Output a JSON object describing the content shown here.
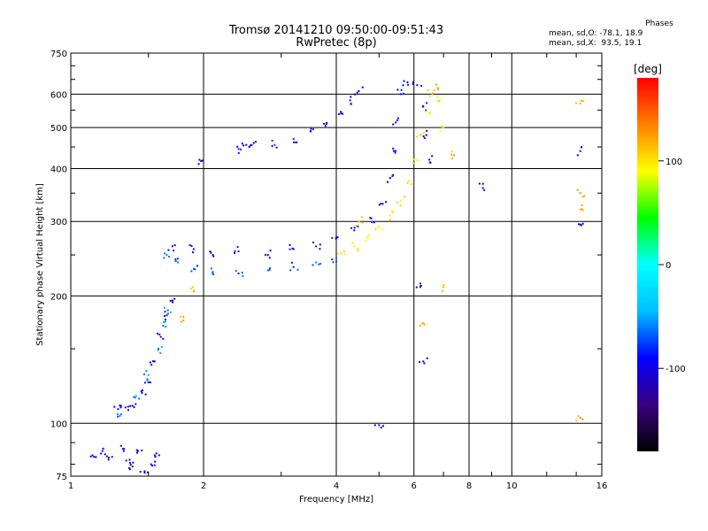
{
  "header": {
    "title": "Tromsø 20141210 09:50:00-09:51:43",
    "subtitle": "RwPretec (8p)"
  },
  "phases_box": {
    "title": "Phases",
    "line_o": "mean, sd,O: -78.1, 18.9",
    "line_x": "mean, sd,X:  93.5, 19.1"
  },
  "colorbar": {
    "unit": "[deg]",
    "ticks": [
      {
        "value": 100,
        "label": "100"
      },
      {
        "value": 0,
        "label": "0"
      },
      {
        "value": -100,
        "label": "-100"
      }
    ],
    "range": [
      -180,
      180
    ],
    "colors": [
      "#000000",
      "#3a0080",
      "#0000ff",
      "#00bfff",
      "#00ffff",
      "#00ff00",
      "#ffff00",
      "#ff8000",
      "#ff0000"
    ]
  },
  "chart_data": {
    "type": "scatter",
    "title": "Tromsø 20141210 09:50:00-09:51:43",
    "subtitle": "RwPretec (8p)",
    "xlabel": "Frequency [MHz]",
    "ylabel": "Stationary phase Virtual Height [km]",
    "x_scale": "log",
    "y_scale": "log",
    "xlim": [
      1,
      16
    ],
    "ylim": [
      75,
      750
    ],
    "x_ticks": [
      {
        "value": 1,
        "label": "1"
      },
      {
        "value": 2,
        "label": "2"
      },
      {
        "value": 4,
        "label": "4"
      },
      {
        "value": 6,
        "label": "6"
      },
      {
        "value": 8,
        "label": "8"
      },
      {
        "value": 10,
        "label": "10"
      },
      {
        "value": 16,
        "label": "16"
      }
    ],
    "y_ticks": [
      {
        "value": 75,
        "label": "75"
      },
      {
        "value": 100,
        "label": "100"
      },
      {
        "value": 200,
        "label": "200"
      },
      {
        "value": 300,
        "label": "300"
      },
      {
        "value": 400,
        "label": "400"
      },
      {
        "value": 500,
        "label": "500"
      },
      {
        "value": 600,
        "label": "600"
      },
      {
        "value": 750,
        "label": "750"
      }
    ],
    "grid": true,
    "color_variable": "phase [deg]",
    "series": [
      {
        "points": [
          [
            1.12,
            84
          ],
          [
            1.18,
            86
          ],
          [
            1.22,
            83
          ],
          [
            1.32,
            87
          ],
          [
            1.36,
            82
          ],
          [
            1.42,
            86
          ],
          [
            1.38,
            79
          ],
          [
            1.47,
            77
          ],
          [
            1.52,
            80
          ],
          [
            1.55,
            84
          ],
          [
            1.28,
            108
          ],
          [
            1.33,
            109
          ],
          [
            1.38,
            110
          ],
          [
            1.45,
            118
          ],
          [
            1.5,
            125
          ],
          [
            1.55,
            140
          ],
          [
            1.6,
            160
          ],
          [
            1.65,
            180
          ],
          [
            1.7,
            195
          ]
        ],
        "phase": -100
      },
      {
        "points": [
          [
            1.3,
            105
          ],
          [
            1.4,
            115
          ],
          [
            1.5,
            130
          ],
          [
            1.58,
            150
          ],
          [
            1.62,
            170
          ],
          [
            1.66,
            185
          ]
        ],
        "phase": -60
      },
      {
        "points": [
          [
            1.65,
            250
          ],
          [
            1.75,
            240
          ],
          [
            1.9,
            232
          ],
          [
            2.1,
            228
          ],
          [
            2.4,
            226
          ],
          [
            2.8,
            230
          ],
          [
            3.2,
            234
          ],
          [
            3.6,
            240
          ],
          [
            4.0,
            246
          ]
        ],
        "phase": -70
      },
      {
        "points": [
          [
            1.7,
            262
          ],
          [
            1.9,
            258
          ],
          [
            2.1,
            250
          ],
          [
            2.4,
            255
          ],
          [
            2.8,
            250
          ],
          [
            3.2,
            258
          ],
          [
            3.6,
            262
          ],
          [
            4.0,
            275
          ],
          [
            4.4,
            290
          ],
          [
            4.8,
            305
          ],
          [
            5.1,
            330
          ],
          [
            5.3,
            380
          ],
          [
            5.4,
            440
          ],
          [
            5.5,
            520
          ],
          [
            5.6,
            600
          ],
          [
            5.8,
            640
          ],
          [
            6.1,
            630
          ],
          [
            6.3,
            560
          ],
          [
            6.4,
            480
          ],
          [
            6.5,
            420
          ]
        ],
        "phase": -95
      },
      {
        "points": [
          [
            4.1,
            252
          ],
          [
            4.4,
            262
          ],
          [
            4.7,
            275
          ],
          [
            5.0,
            290
          ],
          [
            5.3,
            310
          ],
          [
            5.6,
            335
          ],
          [
            5.8,
            370
          ],
          [
            6.0,
            420
          ],
          [
            6.2,
            480
          ],
          [
            6.5,
            540
          ],
          [
            6.8,
            590
          ],
          [
            7.0,
            500
          ]
        ],
        "phase": 95
      },
      {
        "points": [
          [
            2.4,
            445
          ],
          [
            2.6,
            460
          ],
          [
            2.9,
            455
          ],
          [
            3.2,
            470
          ],
          [
            3.5,
            490
          ],
          [
            3.8,
            510
          ],
          [
            4.1,
            540
          ],
          [
            4.3,
            580
          ],
          [
            4.5,
            610
          ]
        ],
        "phase": -90
      },
      {
        "points": [
          [
            1.95,
            410
          ],
          [
            2.5,
            455
          ],
          [
            8.6,
            360
          ]
        ],
        "phase": -110
      },
      {
        "points": [
          [
            6.6,
            600
          ],
          [
            6.8,
            620
          ],
          [
            7.4,
            430
          ],
          [
            7.0,
            210
          ],
          [
            6.2,
            170
          ],
          [
            14.3,
            570
          ],
          [
            14.3,
            350
          ],
          [
            14.3,
            320
          ],
          [
            14.3,
            103
          ],
          [
            1.9,
            205
          ],
          [
            1.8,
            175
          ],
          [
            4.5,
            300
          ]
        ],
        "phase": 120
      },
      {
        "points": [
          [
            5.0,
            99
          ],
          [
            6.3,
            140
          ],
          [
            14.3,
            295
          ],
          [
            14.3,
            440
          ],
          [
            6.2,
            210
          ]
        ],
        "phase": -115
      }
    ]
  }
}
